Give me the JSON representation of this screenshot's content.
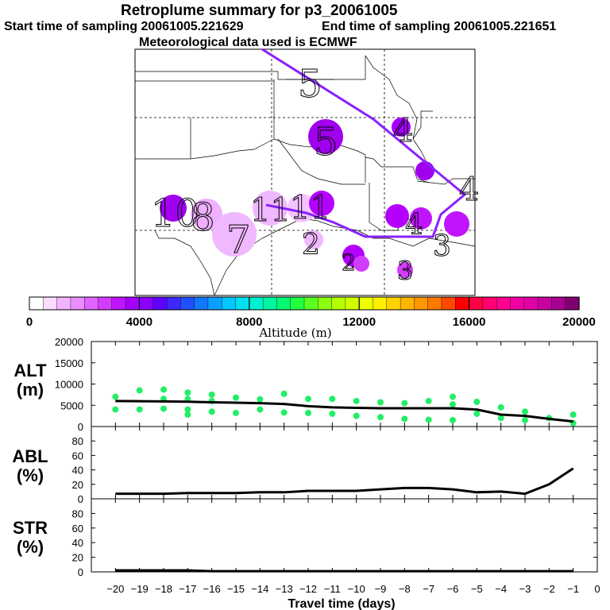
{
  "header": {
    "title": "Retroplume summary for p3_20061005",
    "start_label": "Start time of sampling 20061005.221629",
    "end_label": "End time of sampling 20061005.221651",
    "met_label": "Meteorological data used is ECMWF"
  },
  "colorbar": {
    "label": "Altitude (m)",
    "ticks": [
      "0",
      "4000",
      "8000",
      "12000",
      "16000",
      "20000"
    ],
    "colors": [
      "#ffffff",
      "#fbdcff",
      "#f3b4ff",
      "#eb8cff",
      "#e064ff",
      "#d23cff",
      "#c014ff",
      "#a800ff",
      "#8c00ff",
      "#6000ff",
      "#3c28ff",
      "#2050ff",
      "#1478ff",
      "#0aa0ff",
      "#00c8ff",
      "#00e1f0",
      "#00f0d0",
      "#00f5a0",
      "#00fa70",
      "#20ff40",
      "#5aff20",
      "#8cff10",
      "#b4ff00",
      "#d2ff00",
      "#eeff00",
      "#fff000",
      "#ffd200",
      "#ffb400",
      "#ff9600",
      "#ff7800",
      "#ff4a00",
      "#ff0000",
      "#ff0040",
      "#ff0070",
      "#ff0090",
      "#f000a0",
      "#e000a8",
      "#c800a0",
      "#a80090",
      "#800070"
    ]
  },
  "map_markers": [
    {
      "label": "5",
      "alt": 1500
    },
    {
      "label": "5",
      "alt": 3400
    },
    {
      "label": "4",
      "alt": 3000
    },
    {
      "label": "4",
      "alt": 3200
    },
    {
      "label": "4",
      "alt": 2800
    },
    {
      "label": "10",
      "alt": 3400
    },
    {
      "label": "8",
      "alt": 900
    },
    {
      "label": "7",
      "alt": 600
    },
    {
      "label": "11",
      "alt": 700
    },
    {
      "label": "11",
      "alt": 1500
    },
    {
      "label": "2",
      "alt": 1400
    },
    {
      "label": "3",
      "alt": 2200
    },
    {
      "label": "3",
      "alt": 2800
    },
    {
      "label": "2",
      "alt": 2600
    }
  ],
  "chart_data": [
    {
      "type": "line",
      "ylabel": "ALT\n(m)",
      "ylim": [
        0,
        20000
      ],
      "yticks": [
        "0",
        "5000",
        "10000",
        "15000",
        "20000"
      ],
      "x": [
        -20,
        -19,
        -18,
        -17,
        -16,
        -15,
        -14,
        -13,
        -12,
        -11,
        -10,
        -9,
        -8,
        -7,
        -6,
        -5,
        -4,
        -3,
        -2,
        -1
      ],
      "values": [
        6000,
        5950,
        5900,
        5850,
        5700,
        5600,
        5500,
        5300,
        4800,
        4500,
        4400,
        4300,
        4300,
        4300,
        4300,
        4000,
        2800,
        2500,
        1800,
        1200
      ],
      "points": [
        {
          "x": -20,
          "y": 7000
        },
        {
          "x": -20,
          "y": 4000
        },
        {
          "x": -19,
          "y": 8500
        },
        {
          "x": -19,
          "y": 4000
        },
        {
          "x": -18,
          "y": 8700
        },
        {
          "x": -18,
          "y": 6500
        },
        {
          "x": -18,
          "y": 4200
        },
        {
          "x": -17,
          "y": 8000
        },
        {
          "x": -17,
          "y": 6500
        },
        {
          "x": -17,
          "y": 4000
        },
        {
          "x": -17,
          "y": 2800
        },
        {
          "x": -16,
          "y": 7500
        },
        {
          "x": -16,
          "y": 6000
        },
        {
          "x": -16,
          "y": 3500
        },
        {
          "x": -15,
          "y": 6800
        },
        {
          "x": -15,
          "y": 3200
        },
        {
          "x": -14,
          "y": 6400
        },
        {
          "x": -14,
          "y": 4000
        },
        {
          "x": -13,
          "y": 7700
        },
        {
          "x": -13,
          "y": 3300
        },
        {
          "x": -12,
          "y": 6500
        },
        {
          "x": -12,
          "y": 3200
        },
        {
          "x": -11,
          "y": 6500
        },
        {
          "x": -11,
          "y": 3000
        },
        {
          "x": -10,
          "y": 6000
        },
        {
          "x": -10,
          "y": 2500
        },
        {
          "x": -9,
          "y": 5700
        },
        {
          "x": -9,
          "y": 2200
        },
        {
          "x": -8,
          "y": 5500
        },
        {
          "x": -8,
          "y": 1800
        },
        {
          "x": -7,
          "y": 6000
        },
        {
          "x": -7,
          "y": 1600
        },
        {
          "x": -6,
          "y": 7000
        },
        {
          "x": -6,
          "y": 5200
        },
        {
          "x": -6,
          "y": 1500
        },
        {
          "x": -5,
          "y": 5800
        },
        {
          "x": -5,
          "y": 3000
        },
        {
          "x": -4,
          "y": 4500
        },
        {
          "x": -4,
          "y": 2000
        },
        {
          "x": -3,
          "y": 3500
        },
        {
          "x": -3,
          "y": 1500
        },
        {
          "x": -2,
          "y": 2000
        },
        {
          "x": -1,
          "y": 2800
        },
        {
          "x": -1,
          "y": 800
        }
      ]
    },
    {
      "type": "line",
      "ylabel": "ABL\n(%)",
      "ylim": [
        0,
        100
      ],
      "yticks": [
        "0",
        "20",
        "40",
        "60",
        "80"
      ],
      "x": [
        -20,
        -19,
        -18,
        -17,
        -16,
        -15,
        -14,
        -13,
        -12,
        -11,
        -10,
        -9,
        -8,
        -7,
        -6,
        -5,
        -4,
        -3,
        -2,
        -1
      ],
      "values": [
        7,
        7,
        7,
        8,
        8,
        8,
        9,
        9,
        11,
        11,
        11,
        13,
        15,
        15,
        13,
        9,
        10,
        7,
        20,
        42
      ]
    },
    {
      "type": "line",
      "ylabel": "STR\n(%)",
      "ylim": [
        0,
        100
      ],
      "yticks": [
        "0",
        "20",
        "40",
        "60",
        "80"
      ],
      "x": [
        -20,
        -19,
        -18,
        -17,
        -16,
        -15,
        -14,
        -13,
        -12,
        -11,
        -10,
        -9,
        -8,
        -7,
        -6,
        -5,
        -4,
        -3,
        -2,
        -1
      ],
      "values": [
        2,
        2,
        2,
        2,
        1,
        1,
        1,
        1,
        1,
        1,
        1,
        1,
        1,
        1,
        1,
        1,
        1,
        1,
        1,
        1
      ]
    }
  ],
  "xaxis": {
    "label": "Travel time (days)",
    "ticks": [
      "−20",
      "−19",
      "−18",
      "−17",
      "−16",
      "−15",
      "−14",
      "−13",
      "−12",
      "−11",
      "−10",
      "−9",
      "−8",
      "−7",
      "−6",
      "−5",
      "−4",
      "−3",
      "−2",
      "−1",
      "0"
    ]
  },
  "colors": {
    "trajectory": "#8a20ff",
    "plume_points": "#22ee66",
    "line": "#000000"
  }
}
